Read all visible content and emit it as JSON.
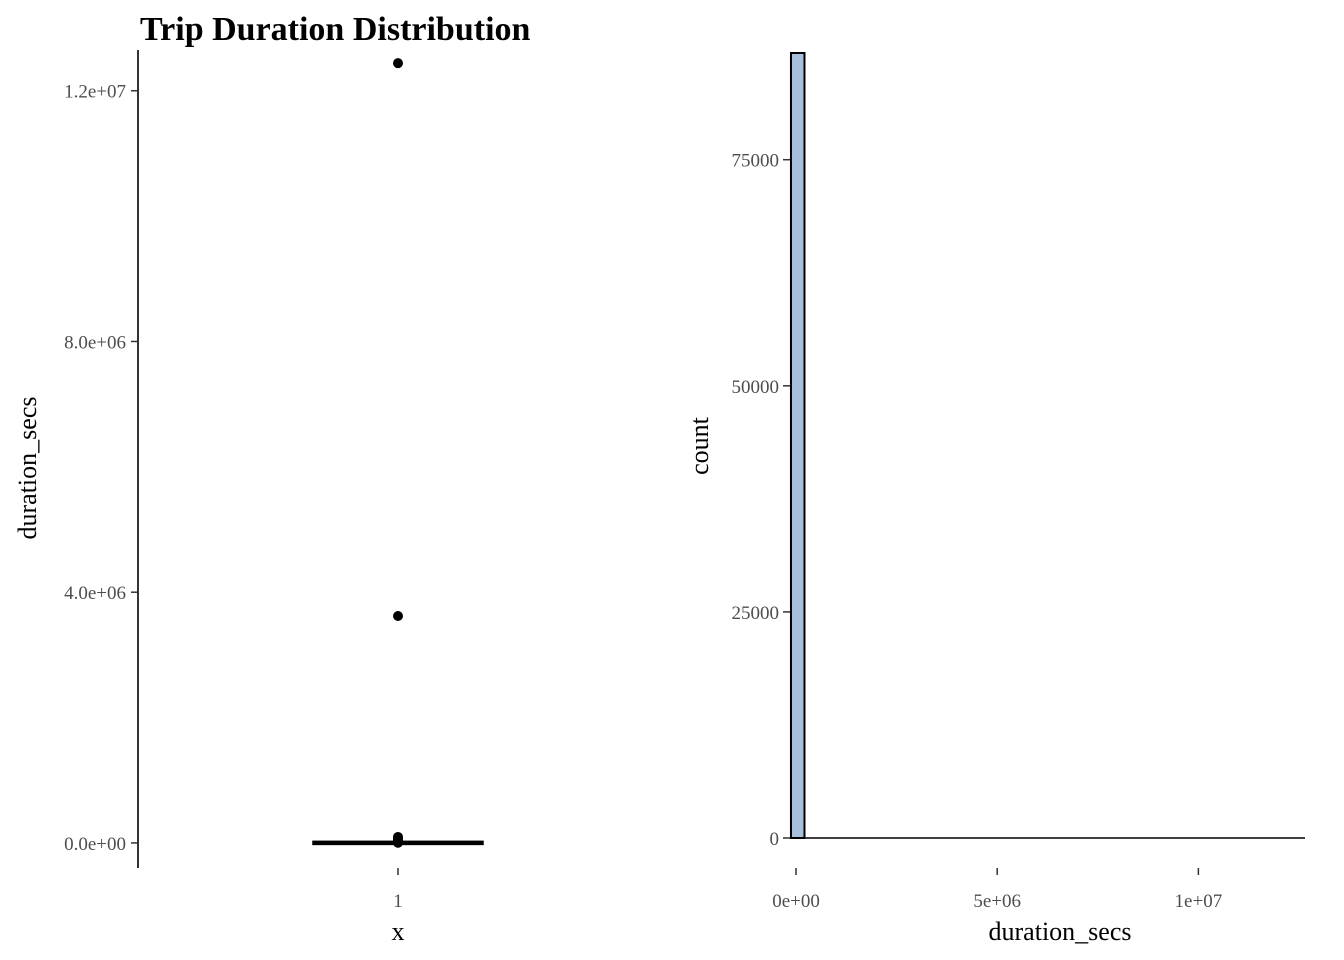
{
  "chart_data": [
    {
      "type": "boxplot",
      "title": "Trip Duration Distribution",
      "xlabel": "x",
      "ylabel": "duration_secs",
      "categories": [
        "1"
      ],
      "ylim": [
        -400000,
        12650000
      ],
      "yticks": [
        {
          "value": 0,
          "label": "0.0e+00"
        },
        {
          "value": 4000000,
          "label": "4.0e+06"
        },
        {
          "value": 8000000,
          "label": "8.0e+06"
        },
        {
          "value": 12000000,
          "label": "1.2e+07"
        }
      ],
      "box": {
        "min": 61,
        "q1": 370,
        "median": 630,
        "q3": 1100,
        "max": 2200
      },
      "outliers": [
        12440000,
        3620000,
        95000,
        75000,
        55000,
        40000,
        25000,
        12000,
        5000,
        3000
      ],
      "grid": false
    },
    {
      "type": "histogram",
      "xlabel": "duration_secs",
      "ylabel": "count",
      "xlim": [
        -150000,
        12650000
      ],
      "ylim": [
        -300000,
        86800
      ],
      "xticks": [
        {
          "value": 0,
          "label": "0e+00"
        },
        {
          "value": 5000000,
          "label": "5e+06"
        },
        {
          "value": 10000000,
          "label": "1e+07"
        }
      ],
      "yticks": [
        {
          "value": 0,
          "label": "0"
        },
        {
          "value": 25000,
          "label": "25000"
        },
        {
          "value": 50000,
          "label": "50000"
        },
        {
          "value": 75000,
          "label": "75000"
        }
      ],
      "bins": [
        {
          "start": -126000,
          "end": 210000,
          "count": 86800
        }
      ],
      "fill": "#a6c0dc",
      "stroke": "#000000",
      "grid": false
    }
  ]
}
